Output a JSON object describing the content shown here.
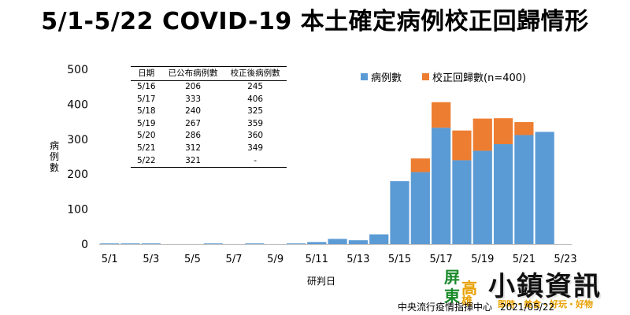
{
  "title": "5/1-5/22 COVID-19 本土確定病例校正回歸情形",
  "legend": {
    "reported": "病例數",
    "corrected": "校正回歸數(n=400)"
  },
  "colors": {
    "reported": "#5b9bd5",
    "corrected": "#ed7d31",
    "axis": "#bfbfbf"
  },
  "table": {
    "headers": [
      "日期",
      "已公布病例數",
      "校正後病例數"
    ],
    "rows": [
      [
        "5/16",
        "206",
        "245"
      ],
      [
        "5/17",
        "333",
        "406"
      ],
      [
        "5/18",
        "240",
        "325"
      ],
      [
        "5/19",
        "267",
        "359"
      ],
      [
        "5/20",
        "286",
        "360"
      ],
      [
        "5/21",
        "312",
        "349"
      ],
      [
        "5/22",
        "321",
        "-"
      ]
    ]
  },
  "source": "中央流行疫情指揮中心",
  "source_date": "2021/05/22",
  "logo": {
    "badge": [
      "屏",
      "東",
      "高",
      "雄"
    ],
    "name": "小鎮資訊",
    "tags": "即時・美食・好玩・好物"
  },
  "chart_data": {
    "type": "bar",
    "stacked": true,
    "categories": [
      "5/1",
      "5/2",
      "5/3",
      "5/4",
      "5/5",
      "5/6",
      "5/7",
      "5/8",
      "5/9",
      "5/10",
      "5/11",
      "5/12",
      "5/13",
      "5/14",
      "5/15",
      "5/16",
      "5/17",
      "5/18",
      "5/19",
      "5/20",
      "5/21",
      "5/22"
    ],
    "series": [
      {
        "name": "病例數",
        "values": [
          2,
          2,
          2,
          0,
          0,
          2,
          0,
          2,
          0,
          2,
          6,
          15,
          11,
          28,
          180,
          206,
          333,
          240,
          267,
          286,
          312,
          321
        ]
      },
      {
        "name": "校正回歸數(n=400)",
        "values": [
          0,
          0,
          0,
          0,
          0,
          0,
          0,
          0,
          0,
          0,
          0,
          0,
          0,
          0,
          0,
          39,
          73,
          85,
          92,
          74,
          37,
          0
        ]
      }
    ],
    "x_tick_labels": [
      "5/1",
      "5/3",
      "5/5",
      "5/7",
      "5/9",
      "5/11",
      "5/13",
      "5/15",
      "5/17",
      "5/19",
      "5/21",
      "5/23"
    ],
    "xlabel": "研判日",
    "ylabel": "病例數",
    "ylim": [
      0,
      500
    ],
    "y_ticks": [
      0,
      100,
      200,
      300,
      400,
      500
    ],
    "grid": false,
    "legend_position": "top-right"
  }
}
